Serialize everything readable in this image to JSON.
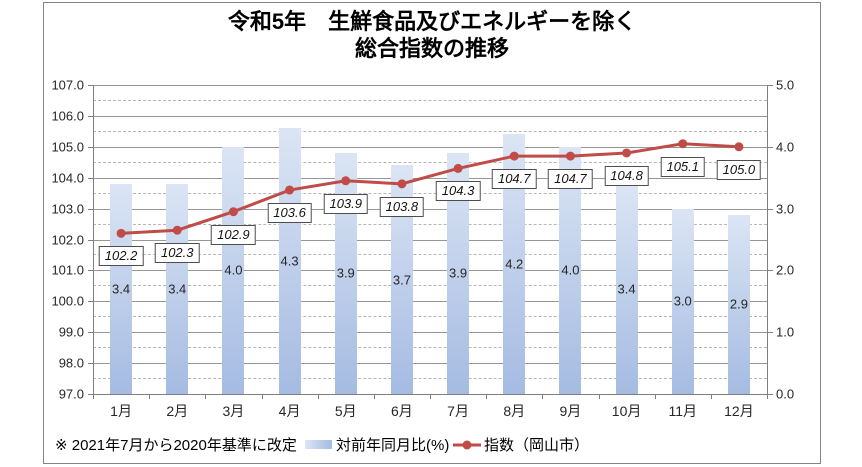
{
  "title": {
    "line1": "令和5年　生鮮食品及びエネルギーを除く",
    "line2": "総合指数の推移"
  },
  "footer": {
    "note": "※ 2021年7月から2020年基準に改定"
  },
  "legend": {
    "bar_label": "対前年同月比(%)",
    "line_label": "指数（岡山市）"
  },
  "chart_data": {
    "type": "bar",
    "subtype": "combo bar+line, dual axis",
    "title": "令和5年 生鮮食品及びエネルギーを除く 総合指数の推移",
    "categories": [
      "1月",
      "2月",
      "3月",
      "4月",
      "5月",
      "6月",
      "7月",
      "8月",
      "9月",
      "10月",
      "11月",
      "12月"
    ],
    "series": [
      {
        "name": "対前年同月比(%)",
        "type": "bar",
        "axis": "right",
        "values": [
          3.4,
          3.4,
          4.0,
          4.3,
          3.9,
          3.7,
          3.9,
          4.2,
          4.0,
          3.4,
          3.0,
          2.9
        ],
        "data_labels": [
          "3.4",
          "3.4",
          "4.0",
          "4.3",
          "3.9",
          "3.7",
          "3.9",
          "4.2",
          "4.0",
          "3.4",
          "3.0",
          "2.9"
        ]
      },
      {
        "name": "指数（岡山市）",
        "type": "line",
        "axis": "left",
        "values": [
          102.2,
          102.3,
          102.9,
          103.6,
          103.9,
          103.8,
          104.3,
          104.7,
          104.7,
          104.8,
          105.1,
          105.0
        ],
        "data_labels": [
          "102.2",
          "102.3",
          "102.9",
          "103.6",
          "103.9",
          "103.8",
          "104.3",
          "104.7",
          "104.7",
          "104.8",
          "105.1",
          "105.0"
        ]
      }
    ],
    "left_axis": {
      "min": 97.0,
      "max": 107.0,
      "major": 1.0,
      "minor": 0.5,
      "tick_labels": [
        "97.0",
        "98.0",
        "99.0",
        "100.0",
        "101.0",
        "102.0",
        "103.0",
        "104.0",
        "105.0",
        "106.0",
        "107.0"
      ]
    },
    "right_axis": {
      "min": 0.0,
      "max": 5.0,
      "major": 1.0,
      "tick_labels": [
        "0.0",
        "1.0",
        "2.0",
        "3.0",
        "4.0",
        "5.0"
      ]
    },
    "grid": "major solid + minor dashed (left axis)",
    "legend_position": "bottom",
    "colors": {
      "bar_gradient_top": "#dbe5f4",
      "bar_gradient_bottom": "#a5bbe2",
      "line": "#bf4c47",
      "grid_major": "#979797",
      "grid_minor": "#b6b6b6",
      "axis": "#7f7f7f"
    }
  }
}
